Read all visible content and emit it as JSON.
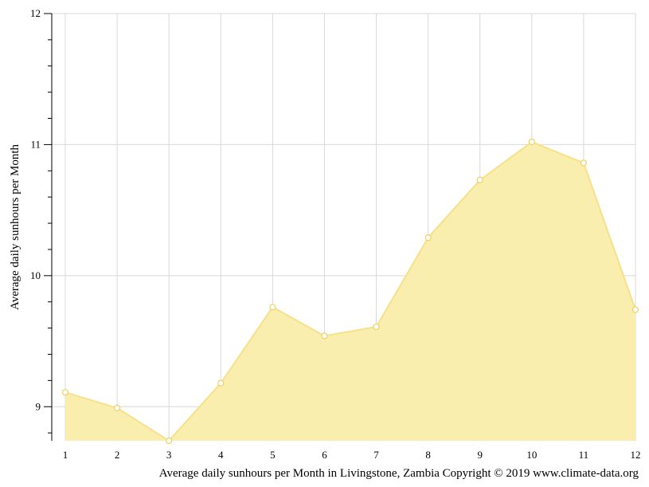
{
  "chart_data": {
    "type": "area",
    "x": [
      1,
      2,
      3,
      4,
      5,
      6,
      7,
      8,
      9,
      10,
      11,
      12
    ],
    "values": [
      9.11,
      8.99,
      8.74,
      9.18,
      9.76,
      9.54,
      9.61,
      10.29,
      10.73,
      11.02,
      10.86,
      9.74
    ],
    "xticks": [
      "1",
      "2",
      "3",
      "4",
      "5",
      "6",
      "7",
      "8",
      "9",
      "10",
      "11",
      "12"
    ],
    "yticks": [
      "9",
      "10",
      "11",
      "12"
    ],
    "ylabel": "Average daily sunhours per Month",
    "caption": "Average daily sunhours per Month in Livingstone, Zambia Copyright © 2019 www.climate-data.org",
    "ylim": [
      8.74,
      12
    ],
    "xlim": [
      1,
      12
    ],
    "grid": true,
    "fill_color": "#faeeae",
    "line_color": "#f7e08a",
    "marker_fill": "#ffffff",
    "marker_stroke": "#f0d060"
  }
}
